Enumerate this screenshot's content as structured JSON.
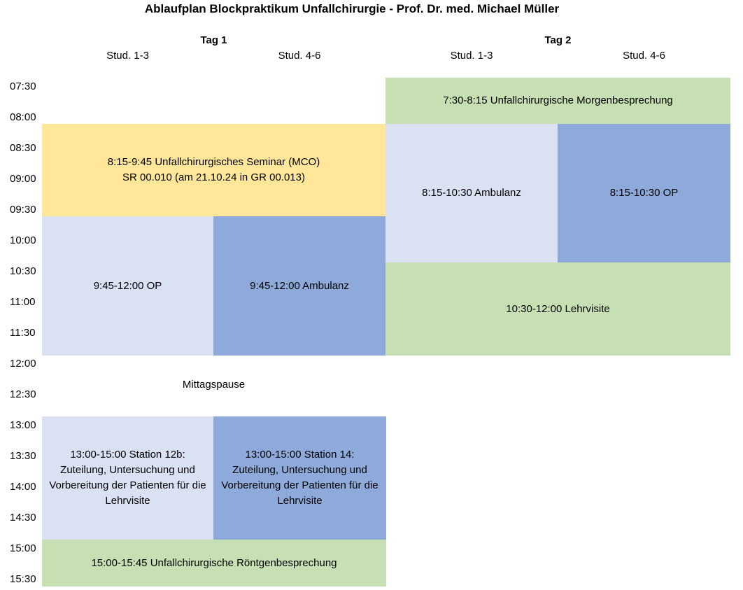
{
  "title": "Ablaufplan Blockpraktikum Unfallchirurgie - Prof. Dr. med. Michael Müller",
  "days": [
    {
      "label": "Tag 1",
      "groups": [
        "Stud. 1-3",
        "Stud. 4-6"
      ]
    },
    {
      "label": "Tag 2",
      "groups": [
        "Stud. 1-3",
        "Stud. 4-6"
      ]
    }
  ],
  "times": [
    "07:30",
    "08:00",
    "08:30",
    "09:00",
    "09:30",
    "10:00",
    "10:30",
    "11:00",
    "11:30",
    "12:00",
    "12:30",
    "13:00",
    "13:30",
    "14:00",
    "14:30",
    "15:00",
    "15:30"
  ],
  "colors": {
    "green": "#c6e0b4",
    "yellow": "#ffe699",
    "light_blue": "#d9e1f2",
    "mid_blue": "#8eaadb"
  },
  "blocks": {
    "d1_seminar": "8:15-9:45 Unfallchirurgisches Seminar (MCO)\nSR 00.010 (am 21.10.24 in GR 00.013)",
    "d1_op": "9:45-12:00 OP",
    "d1_ambulanz": "9:45-12:00 Ambulanz",
    "d1_pause": "Mittagspause",
    "d1_station12b": "13:00-15:00 Station 12b:\nZuteilung, Untersuchung und\nVorbereitung der Patienten für die\nLehrvisite",
    "d1_station14": "13:00-15:00 Station 14:\nZuteilung, Untersuchung und\nVorbereitung der Patienten für die\nLehrvisite",
    "d1_roentgen": "15:00-15:45 Unfallchirurgische Röntgenbesprechung",
    "d2_morgen": "7:30-8:15 Unfallchirurgische Morgenbesprechung",
    "d2_ambulanz": "8:15-10:30 Ambulanz",
    "d2_op": "8:15-10:30 OP",
    "d2_lehrvisite": "10:30-12:00 Lehrvisite"
  }
}
